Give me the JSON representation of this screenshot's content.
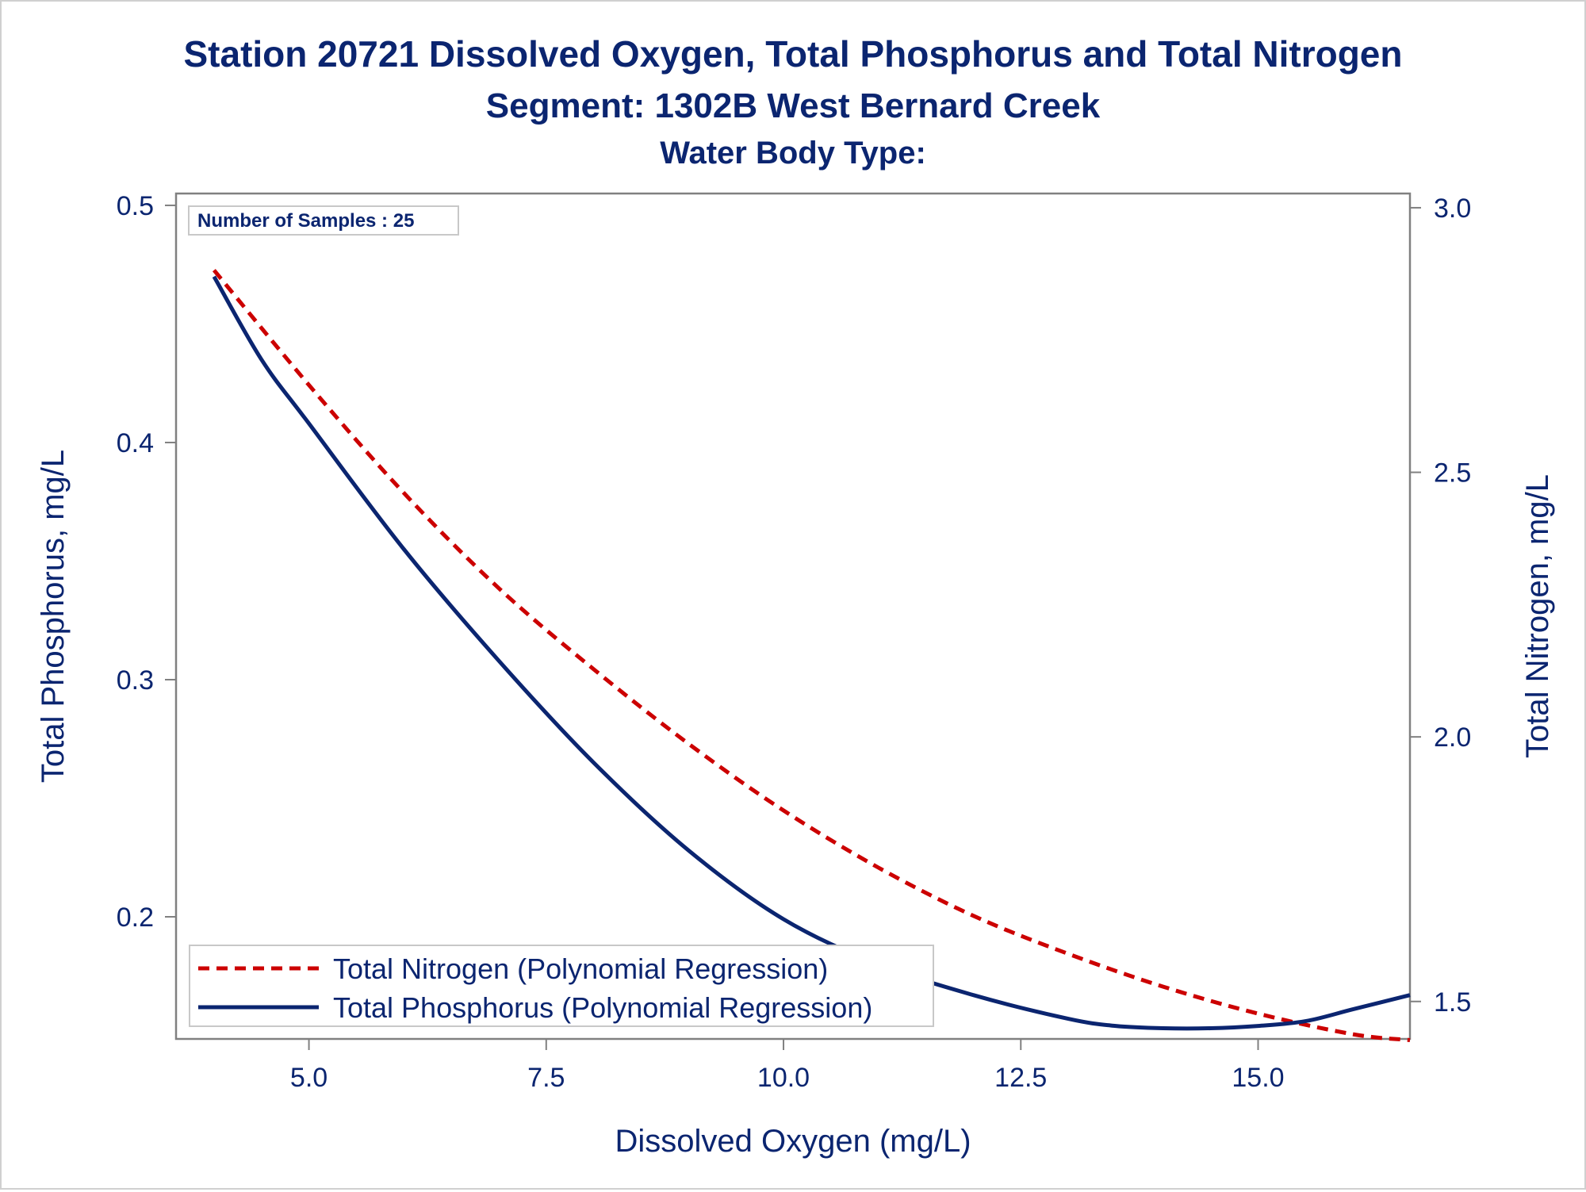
{
  "chart_data": {
    "type": "line",
    "title": "Station 20721  Dissolved Oxygen, Total Phosphorus and Total Nitrogen",
    "subtitle": "Segment: 1302B  West Bernard Creek",
    "subtitle2": "Water Body Type:",
    "annotation": "Number of Samples : 25",
    "xlabel": "Dissolved Oxygen (mg/L)",
    "ylabel": "Total Phosphorus, mg/L",
    "y2label": "Total Nitrogen, mg/L",
    "xlim": [
      3.6,
      16.6
    ],
    "ylim": [
      0.1485,
      0.505
    ],
    "y2lim": [
      1.4292,
      3.0269
    ],
    "xticks": [
      5.0,
      7.5,
      10.0,
      12.5,
      15.0
    ],
    "xtick_labels": [
      "5.0",
      "7.5",
      "10.0",
      "12.5",
      "15.0"
    ],
    "yticks": [
      0.2,
      0.3,
      0.4,
      0.5
    ],
    "ytick_labels": [
      "0.2",
      "0.3",
      "0.4",
      "0.5"
    ],
    "y2ticks": [
      1.5,
      2.0,
      2.5,
      3.0
    ],
    "y2tick_labels": [
      "1.5",
      "2.0",
      "2.5",
      "3.0"
    ],
    "grid": false,
    "legend_position": "bottom-left",
    "series": [
      {
        "name": "Total Nitrogen (Polynomial Regression)",
        "axis": "right",
        "style": "dashed",
        "color": "#cc0000",
        "x": [
          4.0,
          5.0,
          6.0,
          7.0,
          8.0,
          9.0,
          10.0,
          11.0,
          12.0,
          13.0,
          14.0,
          15.0,
          16.0,
          16.6
        ],
        "y": [
          2.882,
          2.665,
          2.461,
          2.281,
          2.128,
          1.987,
          1.861,
          1.753,
          1.662,
          1.59,
          1.528,
          1.477,
          1.438,
          1.427
        ]
      },
      {
        "name": "Total Phosphorus (Polynomial Regression)",
        "axis": "left",
        "style": "solid",
        "color": "#0b2570",
        "x": [
          4.0,
          4.5,
          5.0,
          6.0,
          7.0,
          8.0,
          9.0,
          10.0,
          11.0,
          12.0,
          13.0,
          13.5,
          14.0,
          14.5,
          15.0,
          15.5,
          16.0,
          16.6
        ],
        "y": [
          0.47,
          0.435,
          0.408,
          0.355,
          0.308,
          0.265,
          0.228,
          0.199,
          0.18,
          0.167,
          0.157,
          0.154,
          0.153,
          0.153,
          0.154,
          0.156,
          0.161,
          0.167
        ]
      }
    ],
    "colors": {
      "text": "#0b2570",
      "axis": "#808080",
      "nitrogen": "#cc0000",
      "phosphorus": "#0b2570"
    }
  }
}
